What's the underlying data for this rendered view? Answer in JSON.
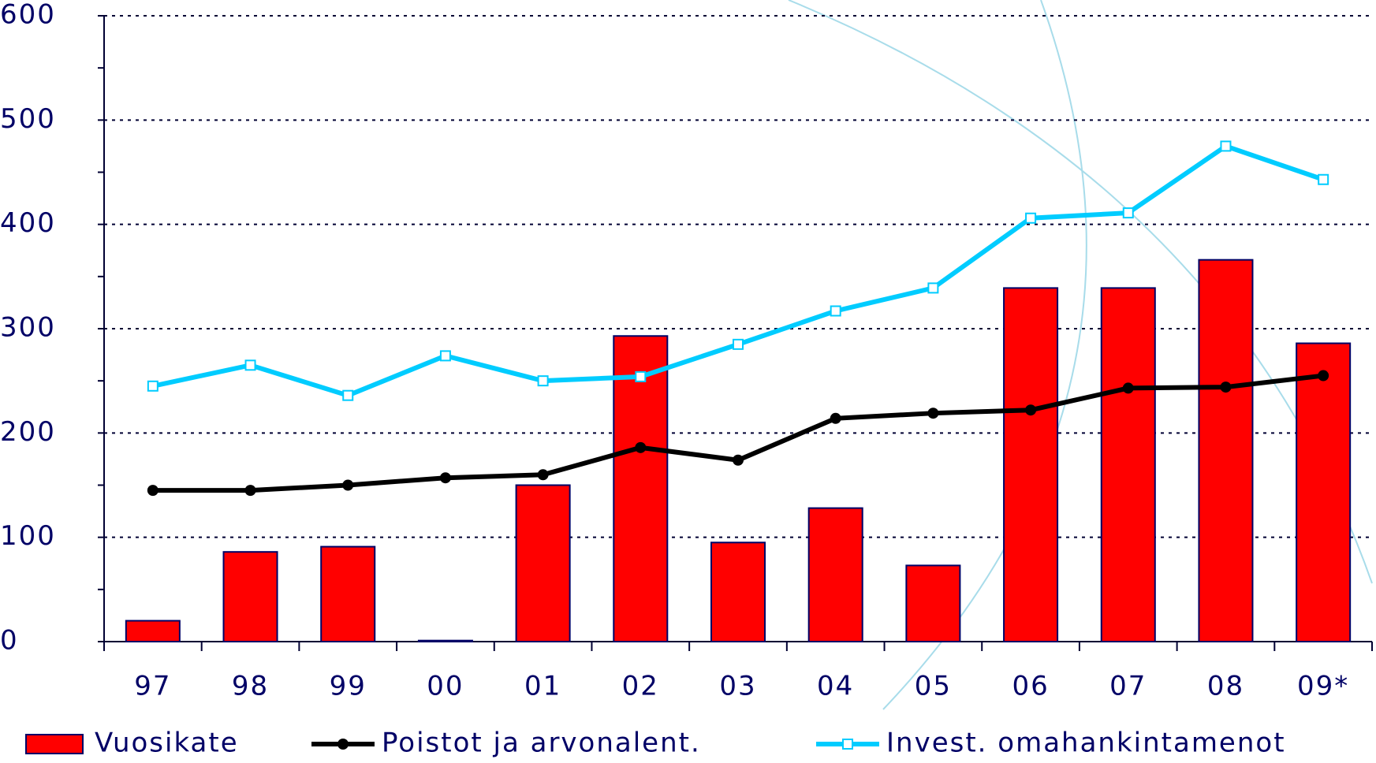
{
  "chart_data": {
    "type": "bar_line",
    "categories": [
      "97",
      "98",
      "99",
      "00",
      "01",
      "02",
      "03",
      "04",
      "05",
      "06",
      "07",
      "08",
      "09*"
    ],
    "series": [
      {
        "name": "Vuosikate",
        "type": "bar",
        "color": "#ff0000",
        "values": [
          20,
          86,
          91,
          1,
          150,
          293,
          95,
          128,
          73,
          339,
          339,
          366,
          286
        ]
      },
      {
        "name": "Poistot ja arvonalent.",
        "type": "line",
        "color": "#000000",
        "values": [
          145,
          145,
          150,
          157,
          160,
          186,
          174,
          214,
          219,
          222,
          243,
          244,
          255
        ]
      },
      {
        "name": "Invest. omahankintamenot",
        "type": "line",
        "color": "#00ccff",
        "values": [
          245,
          265,
          236,
          274,
          250,
          254,
          285,
          317,
          339,
          406,
          411,
          475,
          443
        ]
      }
    ],
    "ylim": [
      0,
      600
    ],
    "yticks": [
      0,
      100,
      200,
      300,
      400,
      500,
      600
    ],
    "grid": true
  }
}
